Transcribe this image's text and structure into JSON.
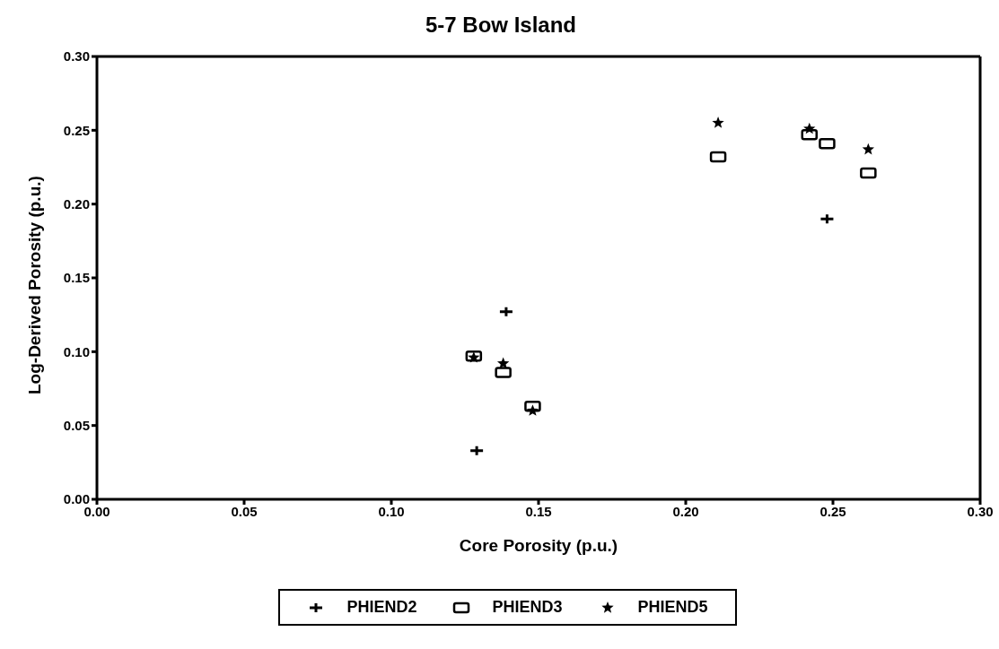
{
  "chart_data": {
    "type": "scatter",
    "title": "5-7 Bow Island",
    "xlabel": "Core Porosity (p.u.)",
    "ylabel": "Log-Derived Porosity (p.u.)",
    "xlim": [
      0,
      0.3
    ],
    "xticks": [
      "0.00",
      0.05,
      "0.10",
      0.15,
      "0.20",
      0.25,
      "0.30"
    ],
    "ylim": [
      0,
      0.3
    ],
    "yticks": [
      "0.00",
      0.05,
      "0.10",
      0.15,
      "0.20",
      0.25,
      "0.30"
    ],
    "grid": false,
    "legend": "bottom",
    "series": [
      {
        "name": "PHIEND2",
        "color": "#000000",
        "marker": "cross",
        "x": [
          0.129,
          0.139,
          0.248
        ],
        "values": [
          0.033,
          0.127,
          0.19
        ]
      },
      {
        "name": "PHIEND3",
        "color": "#000000",
        "marker": "square",
        "x": [
          0.128,
          0.138,
          0.148,
          0.211,
          0.242,
          0.248,
          0.262
        ],
        "values": [
          0.097,
          0.086,
          0.063,
          0.232,
          0.247,
          0.241,
          0.221
        ]
      },
      {
        "name": "PHIEND5",
        "color": "#000000",
        "marker": "star",
        "x": [
          0.128,
          0.138,
          0.148,
          0.211,
          0.242,
          0.262
        ],
        "values": [
          0.096,
          0.092,
          0.06,
          0.255,
          0.251,
          0.237
        ]
      }
    ]
  }
}
